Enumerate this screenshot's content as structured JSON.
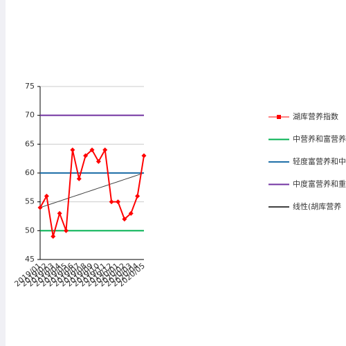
{
  "chart_data": {
    "type": "line",
    "categories": [
      "2019/01",
      "2019/02",
      "2019/03",
      "2019/04",
      "2019/05",
      "2019/06",
      "2019/07",
      "2019/08",
      "2019/09",
      "2019/10",
      "2019/11",
      "2019/12",
      "2020/01",
      "2020/02",
      "2020/03",
      "2020/04",
      "2020/05"
    ],
    "series": [
      {
        "name": "湖库营养指数",
        "color": "#ff0000",
        "marker": "diamond",
        "values": [
          54,
          56,
          49,
          53,
          50,
          64,
          59,
          63,
          64,
          62,
          64,
          55,
          55,
          52,
          53,
          56,
          63
        ]
      },
      {
        "name": "中营养和富营养",
        "color": "#00b050",
        "values": [
          50,
          50,
          50,
          50,
          50,
          50,
          50,
          50,
          50,
          50,
          50,
          50,
          50,
          50,
          50,
          50,
          50
        ]
      },
      {
        "name": "轻度富营养和中",
        "color": "#1f6fa8",
        "values": [
          60,
          60,
          60,
          60,
          60,
          60,
          60,
          60,
          60,
          60,
          60,
          60,
          60,
          60,
          60,
          60,
          60
        ]
      },
      {
        "name": "中度富营养和重",
        "color": "#7030a0",
        "values": [
          70,
          70,
          70,
          70,
          70,
          70,
          70,
          70,
          70,
          70,
          70,
          70,
          70,
          70,
          70,
          70,
          70
        ]
      },
      {
        "name": "线性(胡库营养",
        "color": "#404040",
        "values": [
          54,
          54.38,
          54.75,
          55.13,
          55.5,
          55.88,
          56.25,
          56.63,
          57,
          57.38,
          57.75,
          58.13,
          58.5,
          58.88,
          59.25,
          59.63,
          60
        ]
      }
    ],
    "ylim": [
      45,
      75
    ],
    "yticks": [
      45,
      50,
      55,
      60,
      65,
      70,
      75
    ],
    "grid": true,
    "legend": "right"
  }
}
